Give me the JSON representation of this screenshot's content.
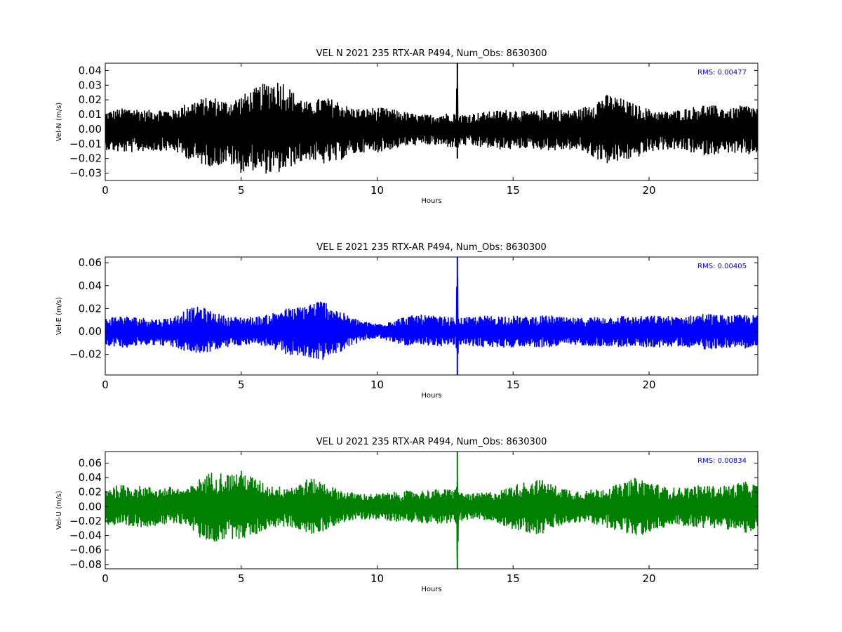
{
  "figure": {
    "background": "#ffffff"
  },
  "chart_data": [
    {
      "type": "line",
      "title": "VEL N 2021 235 RTX-AR  P494, Num_Obs: 8630300",
      "xlabel": "Hours",
      "ylabel": "Vel-N (m/s)",
      "xlim": [
        0,
        24
      ],
      "ylim": [
        -0.035,
        0.045
      ],
      "xticks": [
        0,
        5,
        10,
        15,
        20
      ],
      "xtick_labels": [
        "0",
        "5",
        "10",
        "15",
        "20"
      ],
      "yticks": [
        -0.03,
        -0.02,
        -0.01,
        0.0,
        0.01,
        0.02,
        0.03,
        0.04
      ],
      "ytick_labels": [
        "−0.03",
        "−0.02",
        "−0.01",
        "0.00",
        "0.01",
        "0.02",
        "0.03",
        "0.04"
      ],
      "grid": false,
      "annotation": "RMS:  0.00477",
      "annotation_color": "#0000ff",
      "series": [
        {
          "color": "#000000",
          "x": [
            0,
            0.5,
            1,
            1.5,
            2,
            2.5,
            3,
            3.5,
            4,
            4.5,
            5,
            5.5,
            6,
            6.5,
            7,
            7.5,
            8,
            8.5,
            9,
            9.5,
            10,
            10.5,
            11,
            11.5,
            12,
            12.5,
            12.9,
            12.95,
            13,
            13.5,
            14,
            14.5,
            15,
            15.5,
            16,
            16.5,
            17,
            17.5,
            18,
            18.5,
            19,
            19.5,
            20,
            20.5,
            21,
            21.5,
            22,
            22.5,
            23,
            23.5,
            24
          ],
          "y_upper": [
            0.012,
            0.014,
            0.015,
            0.013,
            0.014,
            0.013,
            0.018,
            0.021,
            0.022,
            0.019,
            0.023,
            0.028,
            0.033,
            0.034,
            0.024,
            0.018,
            0.022,
            0.02,
            0.015,
            0.014,
            0.015,
            0.014,
            0.012,
            0.01,
            0.01,
            0.011,
            0.012,
            0.045,
            0.01,
            0.011,
            0.012,
            0.013,
            0.014,
            0.012,
            0.013,
            0.014,
            0.013,
            0.014,
            0.02,
            0.024,
            0.021,
            0.017,
            0.014,
            0.012,
            0.013,
            0.015,
            0.017,
            0.016,
            0.014,
            0.017,
            0.015
          ],
          "y_lower": [
            -0.014,
            -0.016,
            -0.016,
            -0.015,
            -0.015,
            -0.015,
            -0.02,
            -0.024,
            -0.026,
            -0.023,
            -0.03,
            -0.028,
            -0.031,
            -0.03,
            -0.024,
            -0.021,
            -0.024,
            -0.023,
            -0.018,
            -0.016,
            -0.016,
            -0.014,
            -0.012,
            -0.011,
            -0.011,
            -0.012,
            -0.013,
            -0.02,
            -0.011,
            -0.012,
            -0.013,
            -0.014,
            -0.014,
            -0.013,
            -0.014,
            -0.015,
            -0.014,
            -0.015,
            -0.02,
            -0.024,
            -0.022,
            -0.02,
            -0.016,
            -0.014,
            -0.014,
            -0.016,
            -0.018,
            -0.017,
            -0.016,
            -0.019,
            -0.016
          ]
        }
      ]
    },
    {
      "type": "line",
      "title": "VEL E 2021 235 RTX-AR  P494, Num_Obs: 8630300",
      "xlabel": "Hours",
      "ylabel": "Vel-E (m/s)",
      "xlim": [
        0,
        24
      ],
      "ylim": [
        -0.038,
        0.065
      ],
      "xticks": [
        0,
        5,
        10,
        15,
        20
      ],
      "xtick_labels": [
        "0",
        "5",
        "10",
        "15",
        "20"
      ],
      "yticks": [
        -0.02,
        0.0,
        0.02,
        0.04,
        0.06
      ],
      "ytick_labels": [
        "−0.02",
        "0.00",
        "0.02",
        "0.04",
        "0.06"
      ],
      "grid": false,
      "annotation": "RMS:  0.00405",
      "annotation_color": "#0000ff",
      "series": [
        {
          "color": "#0000ff",
          "x": [
            0,
            0.5,
            1,
            1.5,
            2,
            2.5,
            3,
            3.5,
            4,
            4.5,
            5,
            5.5,
            6,
            6.5,
            7,
            7.5,
            8,
            8.5,
            9,
            9.5,
            10,
            10.5,
            11,
            11.5,
            12,
            12.5,
            12.9,
            12.95,
            13,
            13.5,
            14,
            14.5,
            15,
            15.5,
            16,
            16.5,
            17,
            17.5,
            18,
            18.5,
            19,
            19.5,
            20,
            20.5,
            21,
            21.5,
            22,
            22.5,
            23,
            23.5,
            24
          ],
          "y_upper": [
            0.012,
            0.014,
            0.013,
            0.012,
            0.011,
            0.013,
            0.02,
            0.022,
            0.017,
            0.013,
            0.013,
            0.013,
            0.015,
            0.02,
            0.021,
            0.025,
            0.028,
            0.02,
            0.013,
            0.009,
            0.007,
            0.01,
            0.013,
            0.015,
            0.014,
            0.013,
            0.012,
            0.065,
            0.012,
            0.013,
            0.014,
            0.014,
            0.014,
            0.013,
            0.014,
            0.014,
            0.012,
            0.012,
            0.013,
            0.013,
            0.014,
            0.013,
            0.014,
            0.014,
            0.013,
            0.014,
            0.016,
            0.015,
            0.014,
            0.015,
            0.014
          ],
          "y_lower": [
            -0.012,
            -0.014,
            -0.014,
            -0.012,
            -0.012,
            -0.014,
            -0.018,
            -0.02,
            -0.017,
            -0.014,
            -0.012,
            -0.011,
            -0.014,
            -0.02,
            -0.021,
            -0.024,
            -0.025,
            -0.02,
            -0.013,
            -0.008,
            -0.006,
            -0.009,
            -0.012,
            -0.014,
            -0.013,
            -0.013,
            -0.012,
            -0.038,
            -0.012,
            -0.013,
            -0.014,
            -0.014,
            -0.014,
            -0.013,
            -0.014,
            -0.014,
            -0.012,
            -0.012,
            -0.013,
            -0.013,
            -0.014,
            -0.013,
            -0.014,
            -0.014,
            -0.013,
            -0.014,
            -0.016,
            -0.015,
            -0.014,
            -0.015,
            -0.014
          ]
        }
      ]
    },
    {
      "type": "line",
      "title": "VEL U 2021 235 RTX-AR  P494, Num_Obs: 8630300",
      "xlabel": "Hours",
      "ylabel": "Vel-U (m/s)",
      "xlim": [
        0,
        24
      ],
      "ylim": [
        -0.086,
        0.076
      ],
      "xticks": [
        0,
        5,
        10,
        15,
        20
      ],
      "xtick_labels": [
        "0",
        "5",
        "10",
        "15",
        "20"
      ],
      "yticks": [
        -0.08,
        -0.06,
        -0.04,
        -0.02,
        0.0,
        0.02,
        0.04,
        0.06
      ],
      "ytick_labels": [
        "−0.08",
        "−0.06",
        "−0.04",
        "−0.02",
        "0.00",
        "0.02",
        "0.04",
        "0.06"
      ],
      "grid": false,
      "annotation": "RMS:  0.00834",
      "annotation_color": "#0000ff",
      "series": [
        {
          "color": "#008000",
          "x": [
            0,
            0.5,
            1,
            1.5,
            2,
            2.5,
            3,
            3.5,
            4,
            4.5,
            5,
            5.5,
            6,
            6.5,
            7,
            7.5,
            8,
            8.5,
            9,
            9.5,
            10,
            10.5,
            11,
            11.5,
            12,
            12.5,
            12.9,
            12.95,
            13,
            13.5,
            14,
            14.5,
            15,
            15.5,
            16,
            16.5,
            17,
            17.5,
            18,
            18.5,
            19,
            19.5,
            20,
            20.5,
            21,
            21.5,
            22,
            22.5,
            23,
            23.5,
            24
          ],
          "y_upper": [
            0.026,
            0.03,
            0.03,
            0.028,
            0.026,
            0.028,
            0.024,
            0.04,
            0.05,
            0.045,
            0.05,
            0.04,
            0.03,
            0.028,
            0.03,
            0.04,
            0.035,
            0.025,
            0.02,
            0.018,
            0.018,
            0.02,
            0.022,
            0.022,
            0.024,
            0.024,
            0.025,
            0.076,
            0.02,
            0.018,
            0.02,
            0.022,
            0.03,
            0.035,
            0.038,
            0.03,
            0.025,
            0.022,
            0.024,
            0.028,
            0.032,
            0.04,
            0.036,
            0.028,
            0.026,
            0.028,
            0.03,
            0.028,
            0.03,
            0.035,
            0.03
          ],
          "y_lower": [
            -0.025,
            -0.03,
            -0.03,
            -0.028,
            -0.026,
            -0.025,
            -0.024,
            -0.045,
            -0.05,
            -0.045,
            -0.045,
            -0.04,
            -0.03,
            -0.028,
            -0.03,
            -0.04,
            -0.035,
            -0.025,
            -0.02,
            -0.018,
            -0.018,
            -0.02,
            -0.022,
            -0.022,
            -0.024,
            -0.024,
            -0.025,
            -0.086,
            -0.02,
            -0.018,
            -0.02,
            -0.024,
            -0.032,
            -0.036,
            -0.04,
            -0.03,
            -0.025,
            -0.022,
            -0.025,
            -0.03,
            -0.035,
            -0.042,
            -0.038,
            -0.03,
            -0.026,
            -0.028,
            -0.03,
            -0.03,
            -0.032,
            -0.038,
            -0.032
          ]
        }
      ]
    }
  ]
}
